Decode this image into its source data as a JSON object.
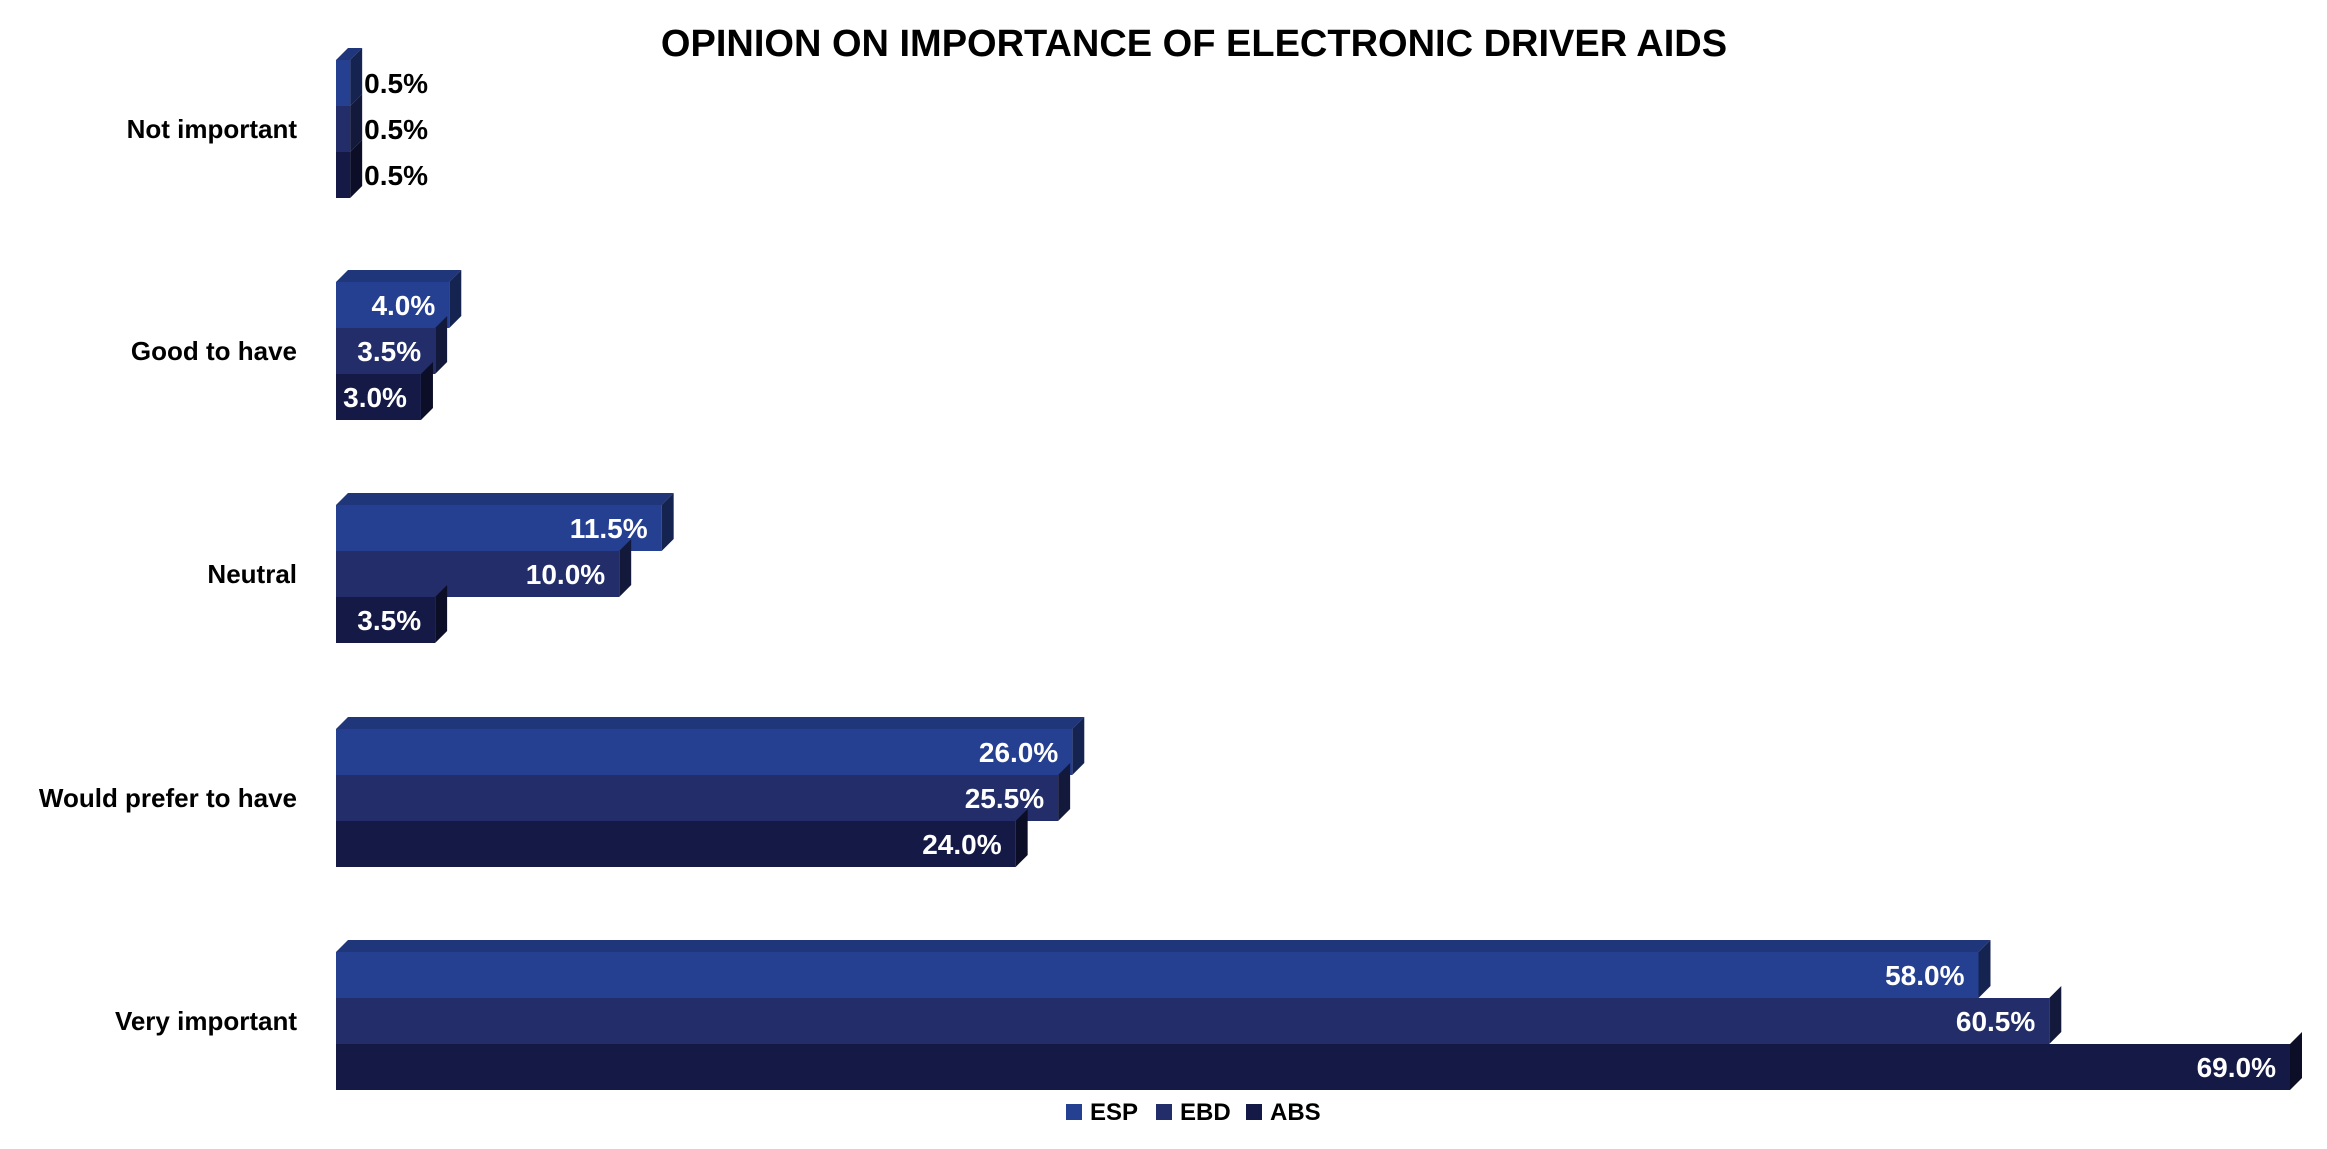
{
  "chart_data": {
    "type": "bar",
    "orientation": "horizontal",
    "style": "3d-clustered",
    "title": "OPINION ON IMPORTANCE OF ELECTRONIC DRIVER AIDS",
    "categories": [
      "Very important",
      "Would prefer to have",
      "Neutral",
      "Good to have",
      "Not important"
    ],
    "series": [
      {
        "name": "ESP",
        "color": "#253f91",
        "values": [
          58.0,
          26.0,
          11.5,
          4.0,
          0.5
        ],
        "labels": [
          "58.0%",
          "26.0%",
          "11.5%",
          "4.0%",
          "0.5%"
        ]
      },
      {
        "name": "EBD",
        "color": "#232d6a",
        "values": [
          60.5,
          25.5,
          10.0,
          3.5,
          0.5
        ],
        "labels": [
          "60.5%",
          "25.5%",
          "10.0%",
          "3.5%",
          "0.5%"
        ]
      },
      {
        "name": "ABS",
        "color": "#141a45",
        "values": [
          69.0,
          24.0,
          3.5,
          3.0,
          0.5
        ],
        "labels": [
          "69.0%",
          "24.0%",
          "3.5%",
          "3.0%",
          "0.5%"
        ]
      }
    ],
    "xlim": [
      0,
      69
    ],
    "grid": false,
    "axes_visible": false,
    "legend_position": "bottom",
    "data_label_color": "#ffffff",
    "small_data_label_color": "#000000"
  }
}
